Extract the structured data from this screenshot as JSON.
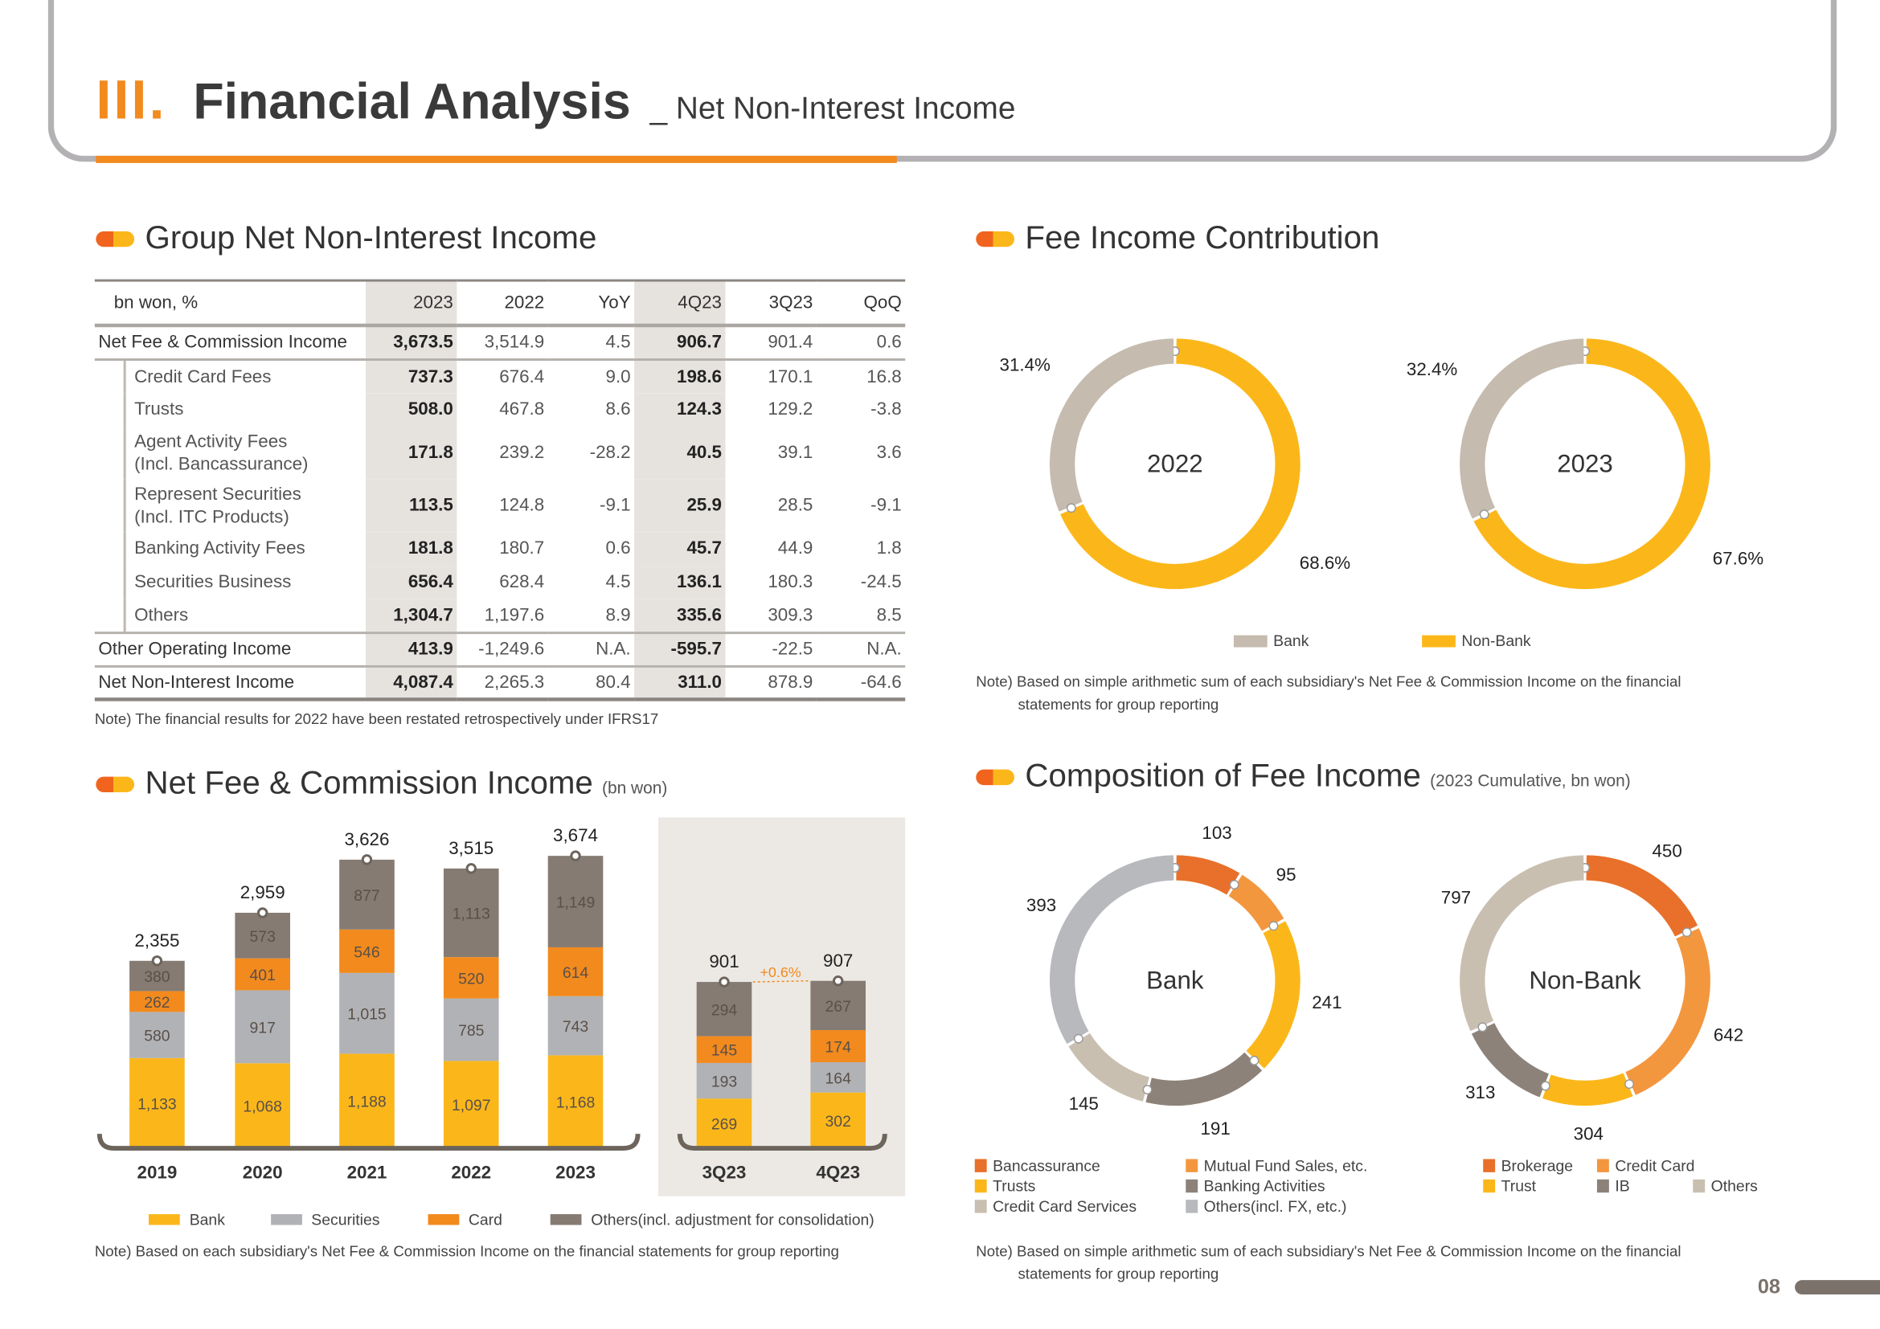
{
  "header": {
    "section_numeral": "III.",
    "title": "Financial Analysis",
    "subtitle": "_ Net Non-Interest Income"
  },
  "group_table": {
    "heading": "Group Net Non-Interest Income",
    "columns": [
      "bn won, %",
      "2023",
      "2022",
      "YoY",
      "4Q23",
      "3Q23",
      "QoQ"
    ],
    "rows": [
      {
        "label": "Net Fee & Commission Income",
        "values": [
          "3,673.5",
          "3,514.9",
          "4.5",
          "906.7",
          "901.4",
          "0.6"
        ]
      },
      {
        "label": "Credit Card Fees",
        "values": [
          "737.3",
          "676.4",
          "9.0",
          "198.6",
          "170.1",
          "16.8"
        ]
      },
      {
        "label": "Trusts",
        "values": [
          "508.0",
          "467.8",
          "8.6",
          "124.3",
          "129.2",
          "-3.8"
        ]
      },
      {
        "label": "Agent Activity Fees",
        "label2": "(Incl. Bancassurance)",
        "values": [
          "171.8",
          "239.2",
          "-28.2",
          "40.5",
          "39.1",
          "3.6"
        ]
      },
      {
        "label": "Represent Securities",
        "label2": "(Incl. ITC Products)",
        "values": [
          "113.5",
          "124.8",
          "-9.1",
          "25.9",
          "28.5",
          "-9.1"
        ]
      },
      {
        "label": "Banking Activity Fees",
        "values": [
          "181.8",
          "180.7",
          "0.6",
          "45.7",
          "44.9",
          "1.8"
        ]
      },
      {
        "label": "Securities Business",
        "values": [
          "656.4",
          "628.4",
          "4.5",
          "136.1",
          "180.3",
          "-24.5"
        ]
      },
      {
        "label": "Others",
        "values": [
          "1,304.7",
          "1,197.6",
          "8.9",
          "335.6",
          "309.3",
          "8.5"
        ]
      },
      {
        "label": "Other Operating Income",
        "values": [
          "413.9",
          "-1,249.6",
          "N.A.",
          "-595.7",
          "-22.5",
          "N.A."
        ]
      },
      {
        "label": "Net Non-Interest Income",
        "values": [
          "4,087.4",
          "2,265.3",
          "80.4",
          "311.0",
          "878.9",
          "-64.6"
        ]
      }
    ],
    "note": "Note) The financial results for 2022  have been restated retrospectively under IFRS17"
  },
  "fee_contribution": {
    "heading": "Fee Income Contribution",
    "note_line1": "Note) Based on simple arithmetic sum of each subsidiary's Net Fee & Commission Income on the financial",
    "note_line2": "statements for group reporting"
  },
  "net_fee": {
    "heading": "Net Fee & Commission Income",
    "unit": "(bn won)",
    "growth_label": "+0.6%",
    "note": "Note) Based on each subsidiary's Net Fee & Commission Income on the financial statements for group reporting"
  },
  "composition": {
    "heading": "Composition of Fee Income",
    "qualifier": "(2023 Cumulative, bn won)",
    "note_line1": "Note) Based on simple arithmetic sum of each subsidiary's Net Fee & Commission Income on the financial",
    "note_line2": "statements for group reporting"
  },
  "page_number": "08",
  "chart_data": [
    {
      "type": "bar",
      "stacked": true,
      "title": "Net Fee & Commission Income",
      "categories": [
        "2019",
        "2020",
        "2021",
        "2022",
        "2023"
      ],
      "totals": [
        "2,355",
        "2,959",
        "3,626",
        "3,515",
        "3,674"
      ],
      "series": [
        {
          "name": "Bank",
          "color": "#fbb71a",
          "values": [
            1133,
            1068,
            1188,
            1097,
            1168
          ]
        },
        {
          "name": "Securities",
          "color": "#b1b2b6",
          "values": [
            580,
            917,
            1015,
            785,
            743
          ]
        },
        {
          "name": "Card",
          "color": "#f28a1e",
          "values": [
            262,
            401,
            546,
            520,
            614
          ]
        },
        {
          "name": "Others(incl. adjustment for consolidation)",
          "color": "#857b72",
          "values": [
            380,
            573,
            877,
            1113,
            1149
          ]
        }
      ],
      "legend": "bottom"
    },
    {
      "type": "bar",
      "stacked": true,
      "categories": [
        "3Q23",
        "4Q23"
      ],
      "totals": [
        "901",
        "907"
      ],
      "series": [
        {
          "name": "Bank",
          "color": "#fbb71a",
          "values": [
            269,
            302
          ]
        },
        {
          "name": "Securities",
          "color": "#b1b2b6",
          "values": [
            193,
            164
          ]
        },
        {
          "name": "Card",
          "color": "#f28a1e",
          "values": [
            145,
            174
          ]
        },
        {
          "name": "Others(incl. adjustment for consolidation)",
          "color": "#857b72",
          "values": [
            294,
            267
          ]
        }
      ],
      "annotation": "+0.6%"
    },
    {
      "type": "pie",
      "donut": true,
      "center_label": "2022",
      "slices": [
        {
          "name": "Non-Bank",
          "value": 68.6,
          "label": "68.6%",
          "color": "#fbb71a"
        },
        {
          "name": "Bank",
          "value": 31.4,
          "label": "31.4%",
          "color": "#c5bbae"
        }
      ]
    },
    {
      "type": "pie",
      "donut": true,
      "center_label": "2023",
      "slices": [
        {
          "name": "Non-Bank",
          "value": 67.6,
          "label": "67.6%",
          "color": "#fbb71a"
        },
        {
          "name": "Bank",
          "value": 32.4,
          "label": "32.4%",
          "color": "#c5bbae"
        }
      ],
      "legend": [
        "Bank",
        "Non-Bank"
      ]
    },
    {
      "type": "pie",
      "donut": true,
      "center_label": "Bank",
      "slices": [
        {
          "name": "Bancassurance",
          "value": 103,
          "color": "#e8702a"
        },
        {
          "name": "Mutual Fund Sales, etc.",
          "value": 95,
          "color": "#f3973f"
        },
        {
          "name": "Trusts",
          "value": 241,
          "color": "#fbb71a"
        },
        {
          "name": "Banking Activities",
          "value": 191,
          "color": "#8c8279"
        },
        {
          "name": "Credit Card Services",
          "value": 145,
          "color": "#c9bfb1"
        },
        {
          "name": "Others(incl. FX, etc.)",
          "value": 393,
          "color": "#b8b9bd"
        }
      ],
      "legend_order": [
        "Bancassurance",
        "Mutual Fund Sales, etc.",
        "Trusts",
        "Banking Activities",
        "Credit Card Services",
        "Others(incl. FX, etc.)"
      ]
    },
    {
      "type": "pie",
      "donut": true,
      "center_label": "Non-Bank",
      "slices": [
        {
          "name": "Brokerage",
          "value": 450,
          "color": "#e8702a"
        },
        {
          "name": "Credit Card",
          "value": 642,
          "color": "#f3973f"
        },
        {
          "name": "Trust",
          "value": 304,
          "color": "#fbb71a"
        },
        {
          "name": "IB",
          "value": 313,
          "color": "#8c8279"
        },
        {
          "name": "Others",
          "value": 797,
          "color": "#c9bfb1"
        }
      ],
      "legend_order": [
        "Brokerage",
        "Credit Card",
        "Trust",
        "IB",
        "Others"
      ]
    }
  ]
}
